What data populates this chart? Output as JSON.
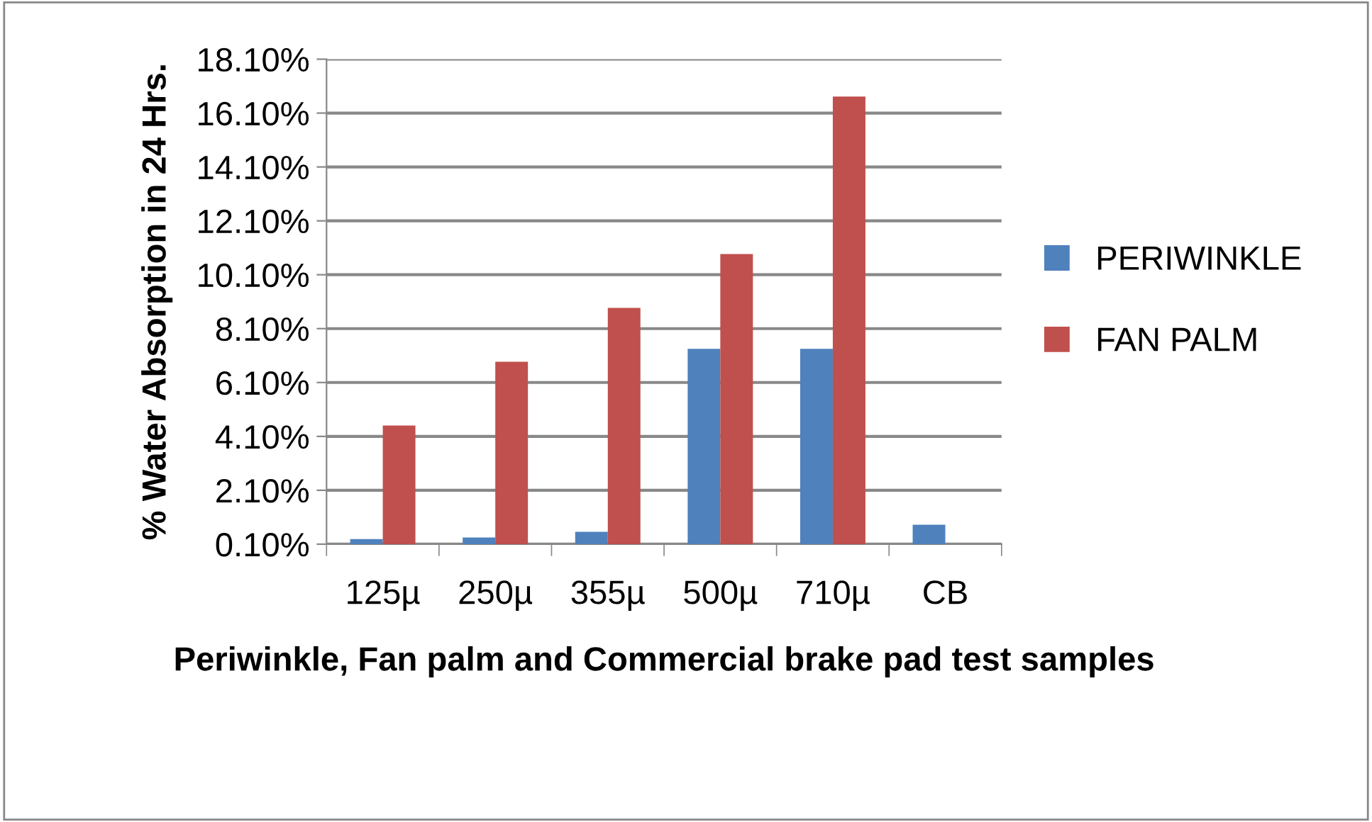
{
  "chart_data": {
    "type": "bar",
    "xlabel": "Periwinkle, Fan palm and Commercial brake pad test samples",
    "ylabel": "% Water Absorption in 24 Hrs.",
    "categories": [
      "125µ",
      "250µ",
      "355µ",
      "500µ",
      "710µ",
      "CB"
    ],
    "series": [
      {
        "name": "PERIWINKLE",
        "color": "#4f81bd",
        "values": [
          0.29,
          0.35,
          0.56,
          7.35,
          7.35,
          0.82
        ]
      },
      {
        "name": "FAN PALM",
        "color": "#c0504d",
        "values": [
          4.5,
          6.87,
          8.87,
          10.87,
          16.71,
          null
        ]
      }
    ],
    "ylim": [
      0.1,
      18.1
    ],
    "yticks": [
      {
        "value": 0.1,
        "label": "0.10%"
      },
      {
        "value": 2.1,
        "label": "2.10%"
      },
      {
        "value": 4.1,
        "label": "4.10%"
      },
      {
        "value": 6.1,
        "label": "6.10%"
      },
      {
        "value": 8.1,
        "label": "8.10%"
      },
      {
        "value": 10.1,
        "label": "10.10%"
      },
      {
        "value": 12.1,
        "label": "12.10%"
      },
      {
        "value": 14.1,
        "label": "14.10%"
      },
      {
        "value": 16.1,
        "label": "16.10%"
      },
      {
        "value": 18.1,
        "label": "18.10%"
      }
    ],
    "grid": "y",
    "legend": "right"
  }
}
